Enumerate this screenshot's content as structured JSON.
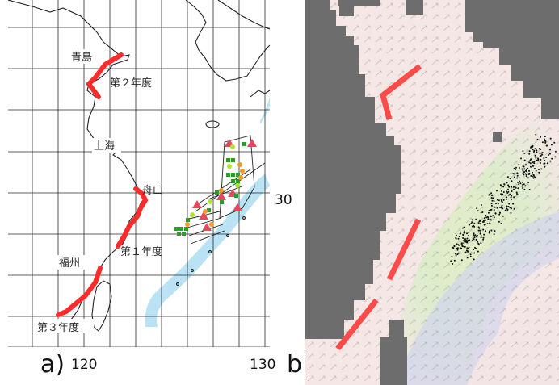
{
  "panel_a": {
    "label": "a)",
    "place_labels": {
      "qingdao": "青島",
      "shanghai": "上海",
      "zhoushan": "舟山",
      "fuzhou": "福州"
    },
    "year_labels": {
      "year2": "第２年度",
      "year1": "第１年度",
      "year3": "第３年度"
    },
    "x_ticks": [
      "120",
      "130"
    ],
    "y_tick": "30"
  },
  "panel_b": {
    "label": "b)"
  },
  "colors": {
    "survey_track": "#ff2b2b",
    "warm_current": "#b9e3f4",
    "grid": "#2a2a2a",
    "marker_triangle": "#e8465c",
    "marker_square": "#2e9a2e",
    "marker_circle": "#f39b2a",
    "marker_lightgreen": "#b5e22f",
    "land_b": "#6d6d6d",
    "dashed_line_b": "#ff4a4a",
    "scatter_points": "#111111"
  }
}
